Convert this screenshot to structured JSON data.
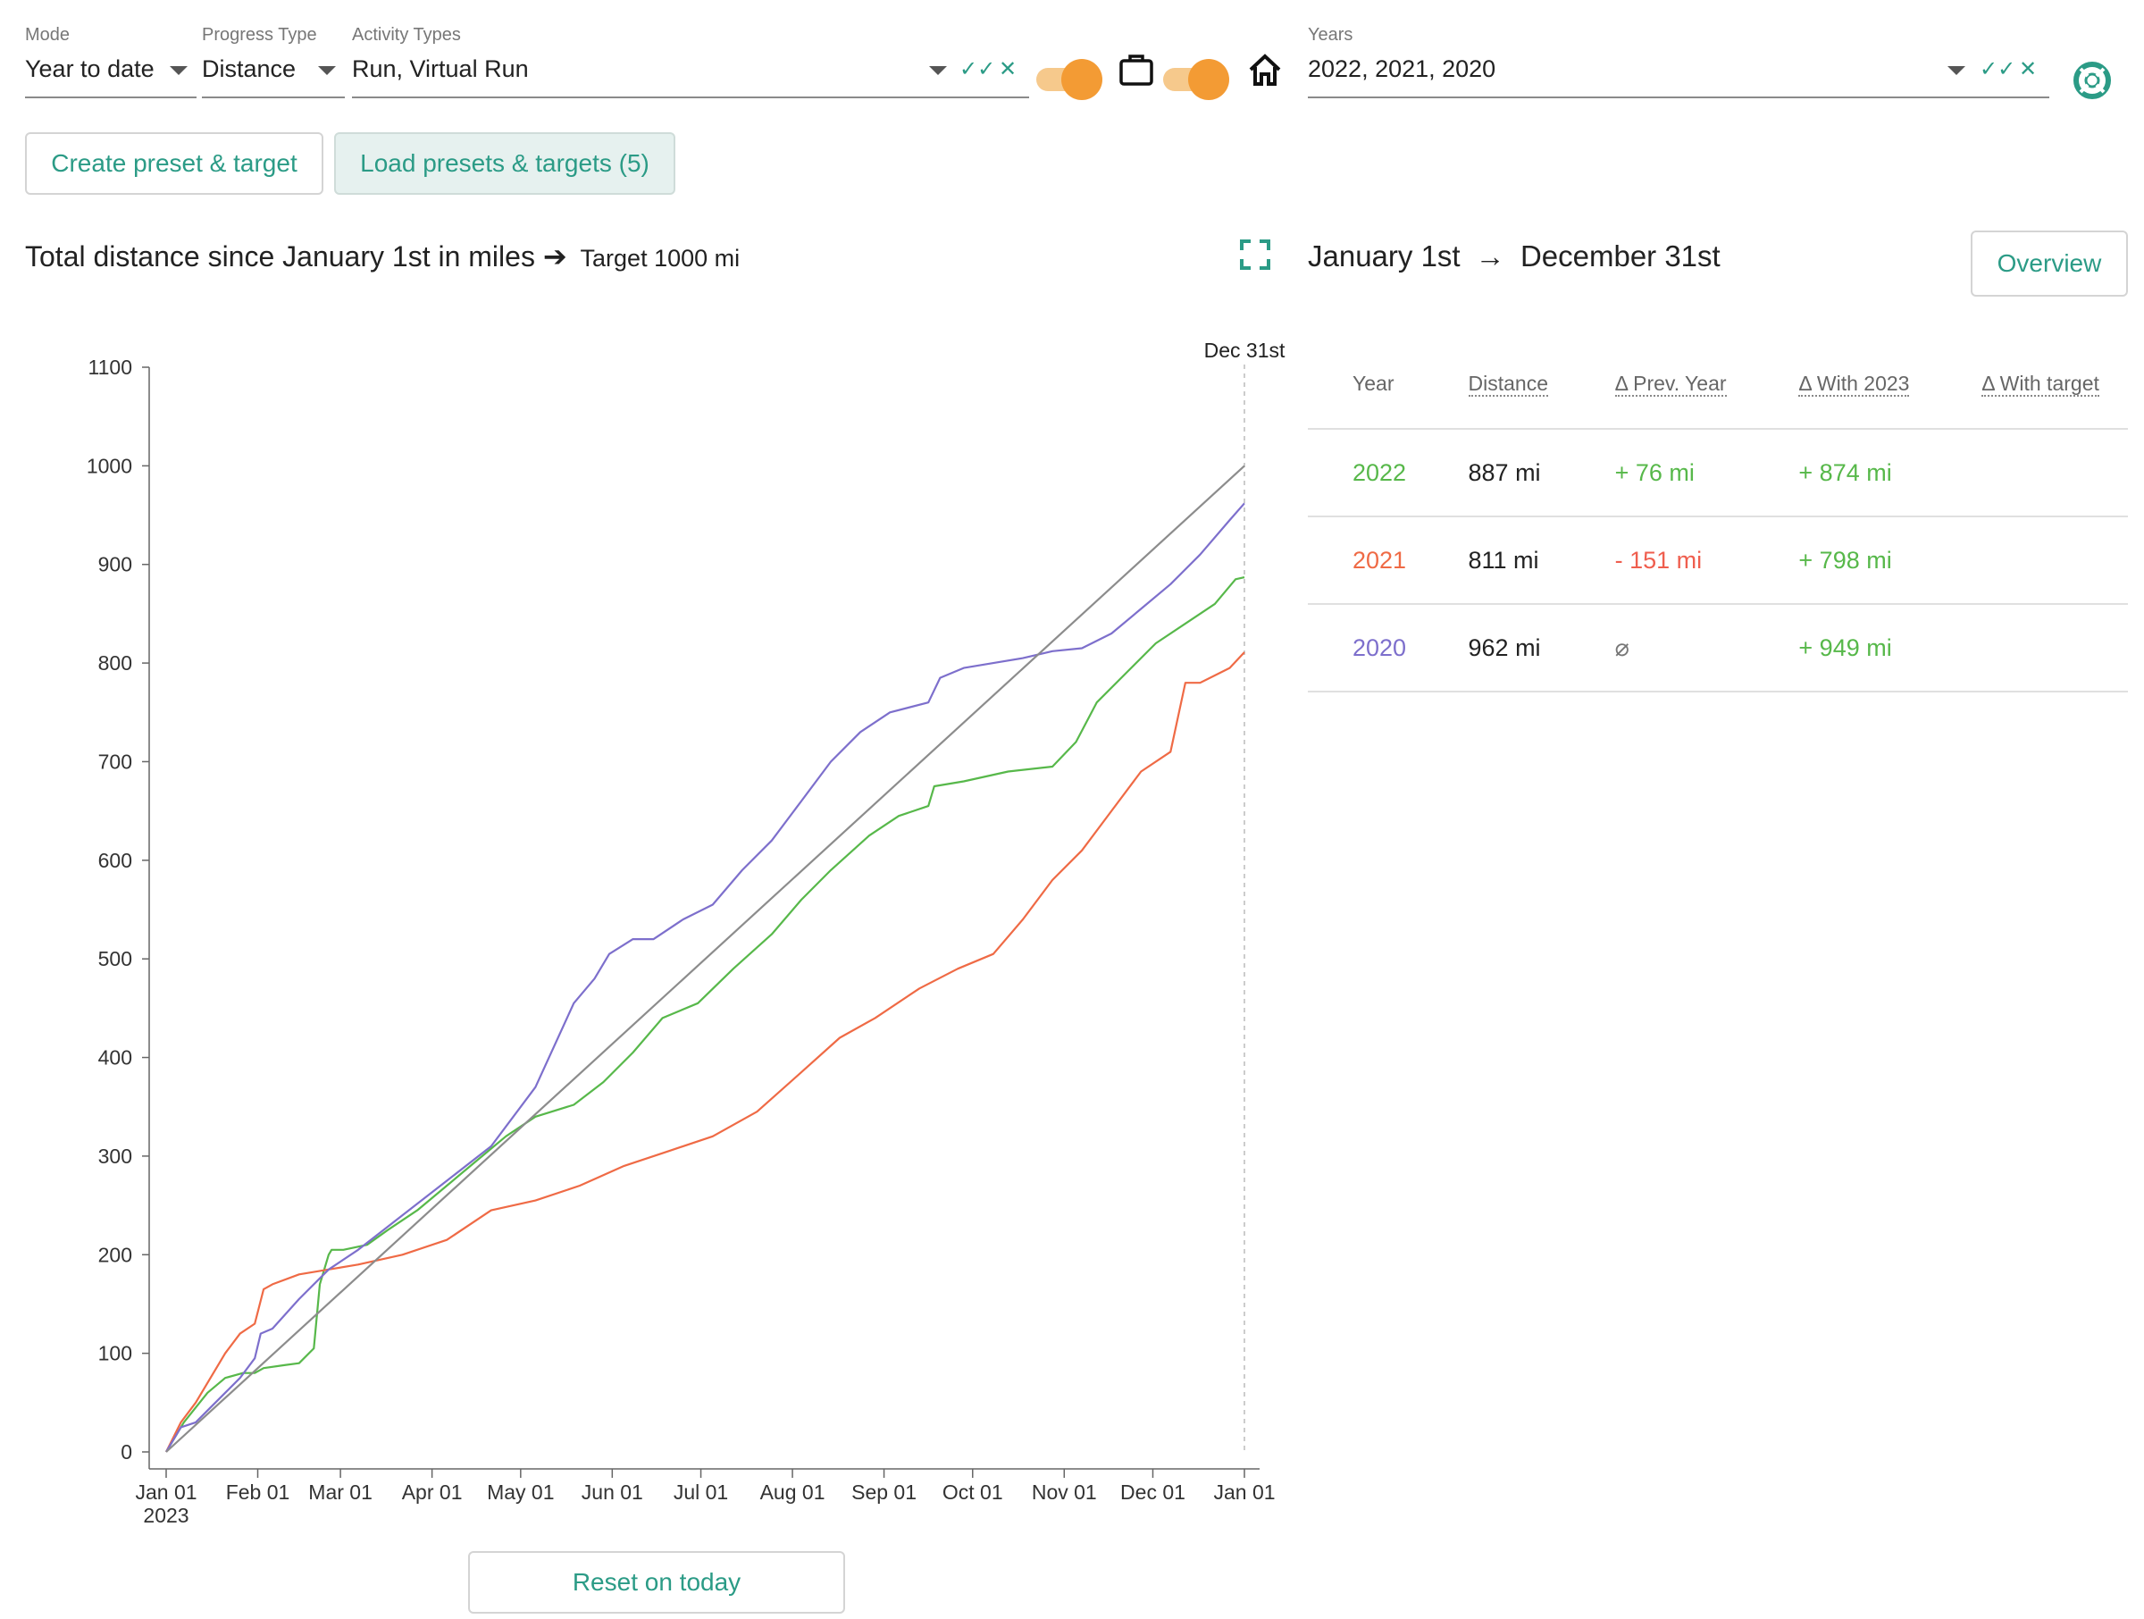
{
  "filters": {
    "mode": {
      "label": "Mode",
      "value": "Year to date"
    },
    "progress_type": {
      "label": "Progress Type",
      "value": "Distance"
    },
    "activity_types": {
      "label": "Activity Types",
      "value": "Run, Virtual Run"
    },
    "years": {
      "label": "Years",
      "value": "2022, 2021, 2020"
    },
    "toggle_commute": {
      "icon": "briefcase-icon",
      "on": true
    },
    "toggle_home": {
      "icon": "home-icon",
      "on": true
    }
  },
  "buttons": {
    "create_preset": "Create preset & target",
    "load_presets": "Load presets & targets (5)",
    "overview": "Overview",
    "reset_today": "Reset on today"
  },
  "chart_header": {
    "title": "Total distance since January 1st in miles",
    "arrow": "➔",
    "target": "Target 1000 mi"
  },
  "range": {
    "start": "January 1st",
    "arrow": "→",
    "end": "December 31st"
  },
  "table": {
    "headers": [
      "Year",
      "Distance",
      "Δ Prev. Year",
      "Δ With 2023",
      "Δ With target"
    ],
    "rows": [
      {
        "year": "2022",
        "distance": "887 mi",
        "prev": "+ 76 mi",
        "with2023": "+ 874 mi",
        "target": ""
      },
      {
        "year": "2021",
        "distance": "811 mi",
        "prev": "- 151 mi",
        "with2023": "+ 798 mi",
        "target": ""
      },
      {
        "year": "2020",
        "distance": "962 mi",
        "prev": "⌀",
        "with2023": "+ 949 mi",
        "target": ""
      }
    ]
  },
  "colors": {
    "accent": "#2b9b86",
    "orange": "#f39b34",
    "y2022": "#57b84a",
    "y2021": "#ef6a45",
    "y2020": "#7d6fcc",
    "target": "#8c8c8c"
  },
  "chart_data": {
    "type": "line",
    "title": "Total distance since January 1st in miles",
    "x_ticks": [
      "Jan 01",
      "Feb 01",
      "Mar 01",
      "Apr 01",
      "May 01",
      "Jun 01",
      "Jul 01",
      "Aug 01",
      "Sep 01",
      "Oct 01",
      "Nov 01",
      "Dec 01",
      "Jan 01"
    ],
    "x_tick_days": [
      0,
      31,
      59,
      90,
      120,
      151,
      181,
      212,
      243,
      273,
      304,
      334,
      365
    ],
    "x_sub_label": "2023",
    "end_marker": "Dec 31st",
    "ylim": [
      0,
      1100
    ],
    "y_ticks": [
      0,
      100,
      200,
      300,
      400,
      500,
      600,
      700,
      800,
      900,
      1000,
      1100
    ],
    "series": [
      {
        "name": "2022",
        "color": "#57b84a",
        "x": [
          0,
          3,
          6,
          10,
          14,
          20,
          26,
          30,
          33,
          40,
          45,
          50,
          52,
          55,
          56,
          60,
          68,
          75,
          85,
          95,
          105,
          115,
          125,
          138,
          148,
          158,
          168,
          180,
          192,
          205,
          215,
          225,
          238,
          248,
          258,
          260,
          270,
          285,
          300,
          308,
          315,
          325,
          335,
          345,
          355,
          362,
          365
        ],
        "y": [
          0,
          15,
          30,
          45,
          60,
          75,
          80,
          80,
          85,
          88,
          90,
          105,
          170,
          200,
          205,
          205,
          210,
          225,
          245,
          270,
          295,
          320,
          340,
          352,
          375,
          405,
          440,
          455,
          490,
          525,
          560,
          590,
          625,
          645,
          655,
          675,
          680,
          690,
          695,
          720,
          760,
          790,
          820,
          840,
          860,
          885,
          887
        ]
      },
      {
        "name": "2021",
        "color": "#ef6a45",
        "x": [
          0,
          5,
          10,
          15,
          20,
          25,
          30,
          33,
          36,
          45,
          55,
          65,
          80,
          95,
          110,
          125,
          140,
          155,
          170,
          185,
          200,
          215,
          228,
          240,
          255,
          268,
          280,
          290,
          300,
          310,
          320,
          330,
          340,
          345,
          350,
          360,
          365
        ],
        "y": [
          0,
          30,
          50,
          75,
          100,
          120,
          130,
          165,
          170,
          180,
          185,
          190,
          200,
          215,
          245,
          255,
          270,
          290,
          305,
          320,
          345,
          385,
          420,
          440,
          470,
          490,
          505,
          540,
          580,
          610,
          650,
          690,
          710,
          780,
          780,
          795,
          811
        ]
      },
      {
        "name": "2020",
        "color": "#7d6fcc",
        "x": [
          0,
          5,
          10,
          15,
          20,
          25,
          30,
          32,
          36,
          45,
          55,
          65,
          80,
          95,
          110,
          125,
          138,
          145,
          150,
          158,
          165,
          175,
          185,
          195,
          205,
          215,
          225,
          235,
          245,
          258,
          262,
          270,
          280,
          290,
          300,
          310,
          320,
          330,
          340,
          350,
          360,
          365
        ],
        "y": [
          0,
          25,
          30,
          45,
          60,
          75,
          95,
          120,
          125,
          155,
          185,
          205,
          240,
          275,
          310,
          370,
          455,
          480,
          505,
          520,
          520,
          540,
          555,
          590,
          620,
          660,
          700,
          730,
          750,
          760,
          785,
          795,
          800,
          805,
          812,
          815,
          830,
          855,
          880,
          910,
          945,
          962
        ]
      },
      {
        "name": "Target 1000 mi",
        "color": "#8c8c8c",
        "x": [
          0,
          365
        ],
        "y": [
          0,
          1000
        ]
      }
    ]
  }
}
